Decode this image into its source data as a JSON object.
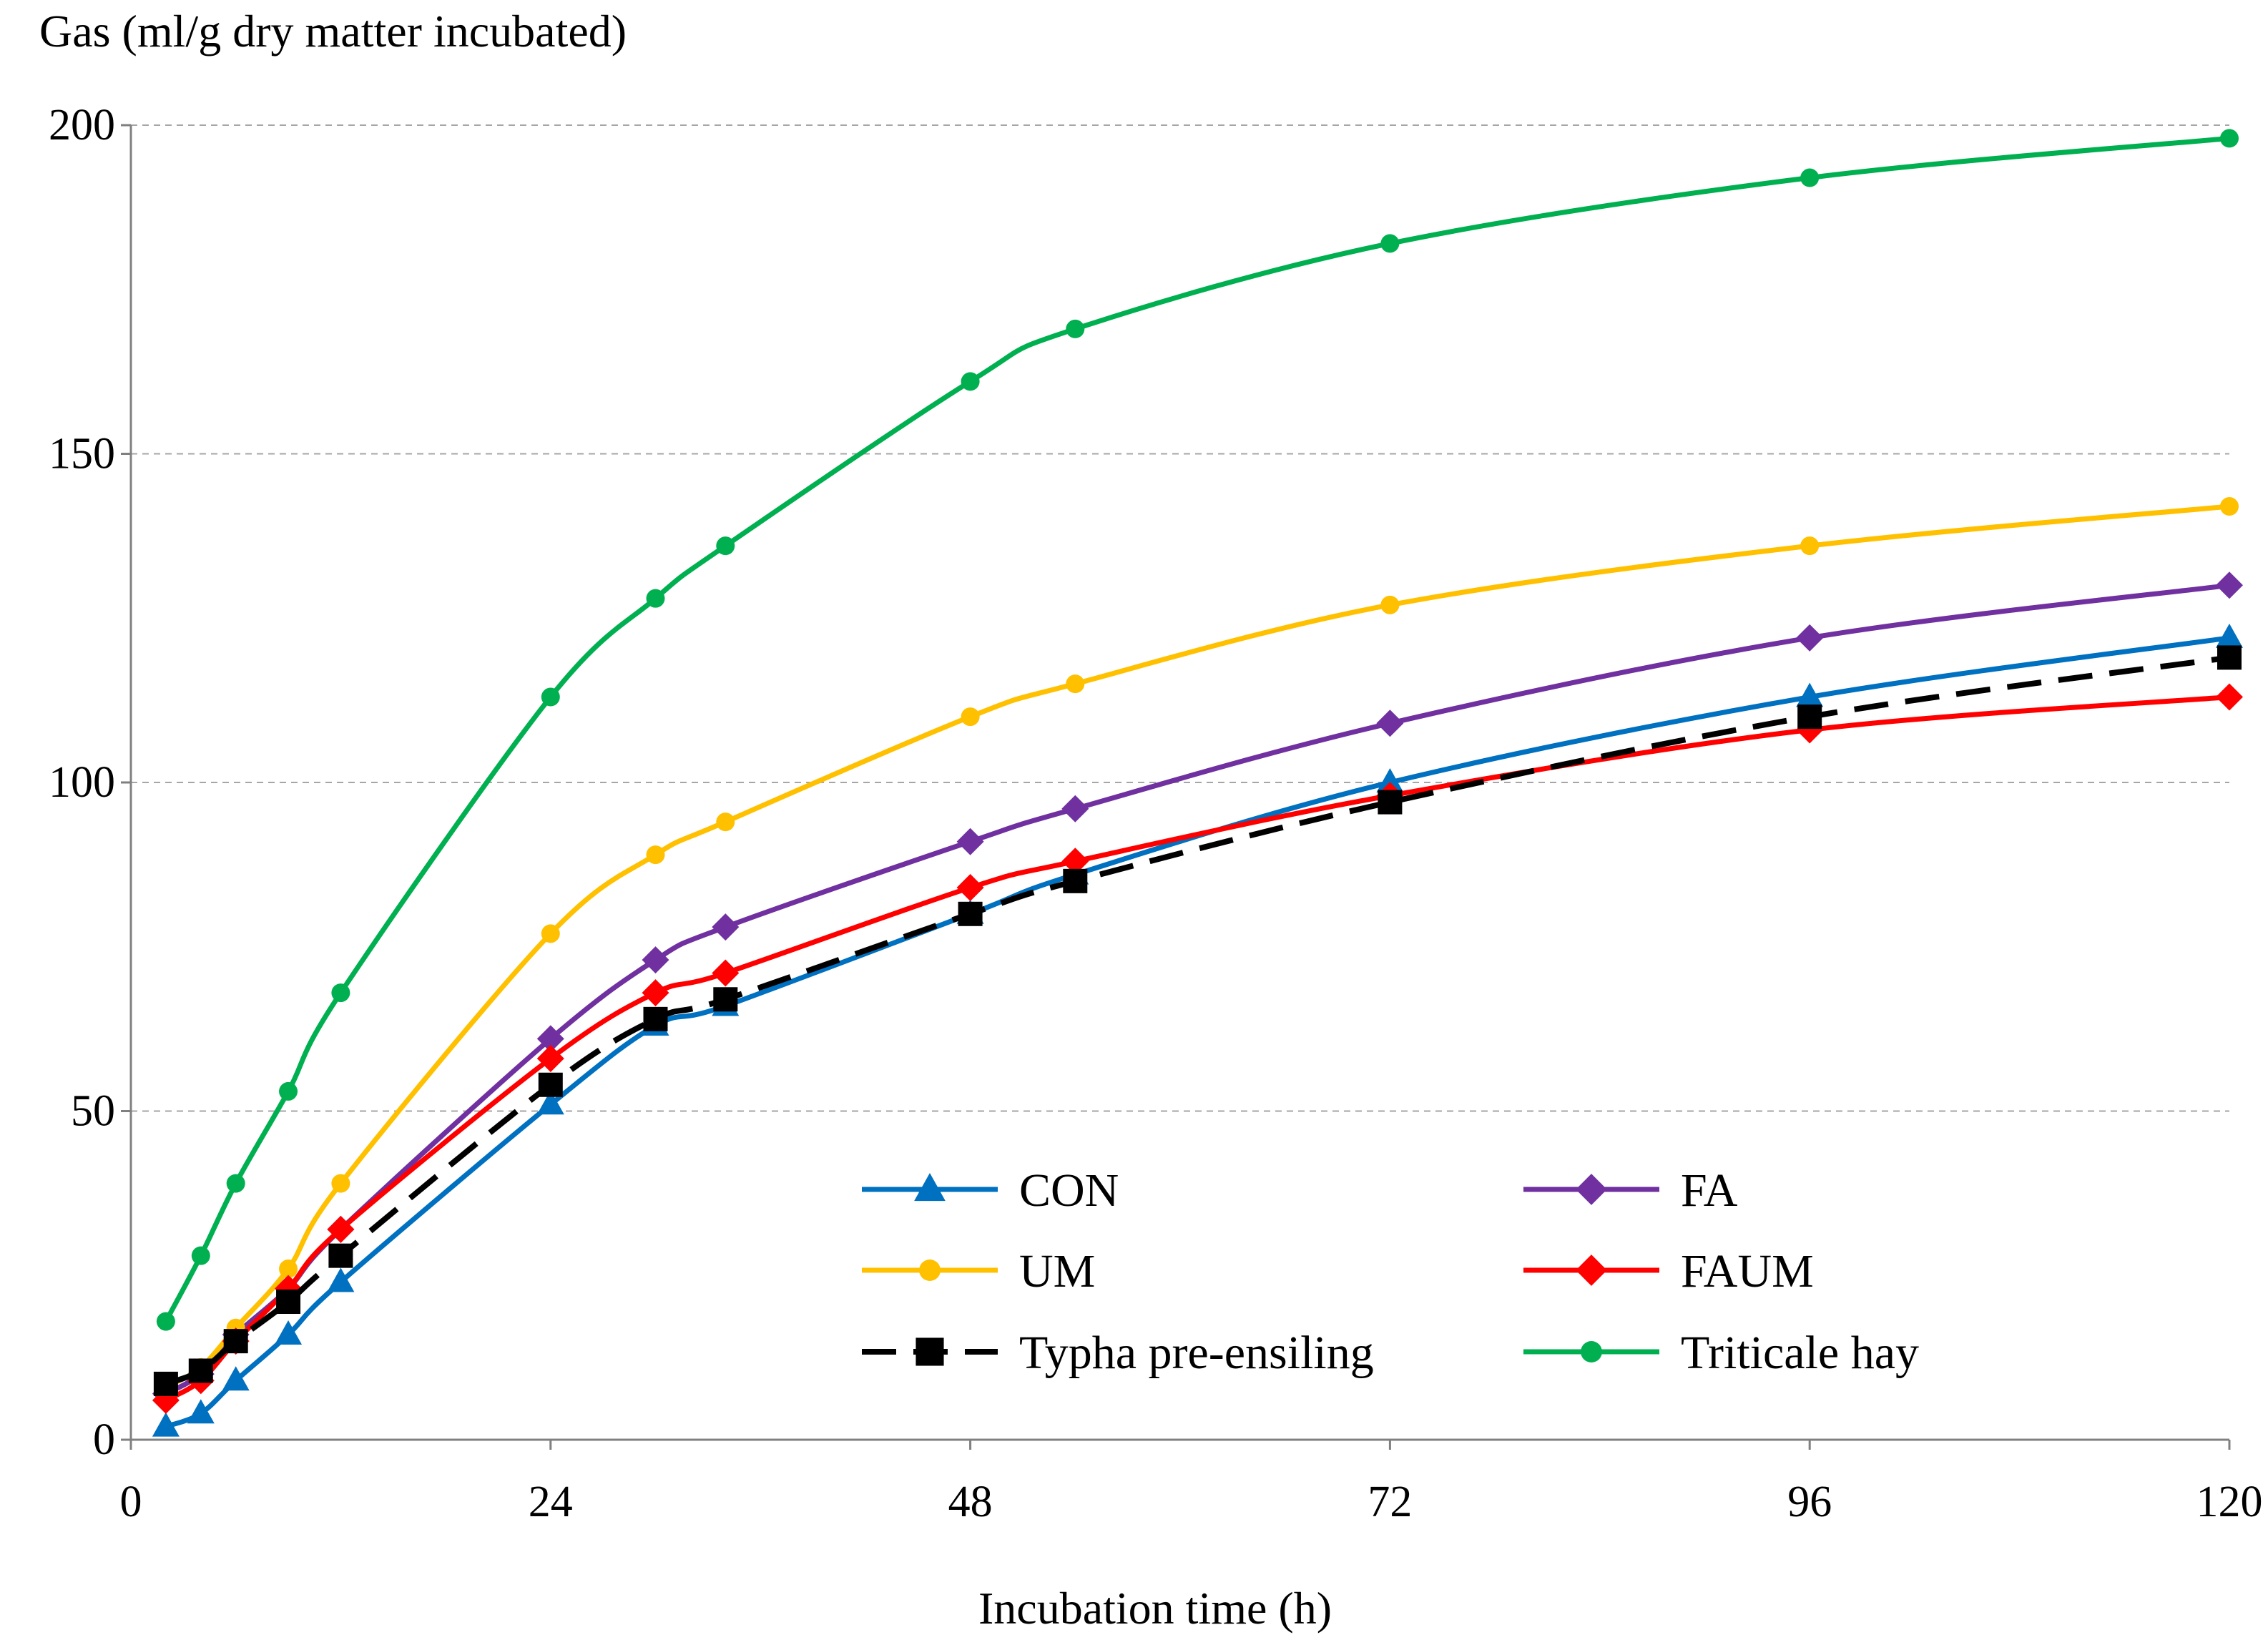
{
  "chart_data": {
    "type": "line",
    "title": "",
    "ylabel": "Gas (ml/g dry matter incubated)",
    "xlabel": "Incubation time (h)",
    "xlim": [
      0,
      120
    ],
    "ylim": [
      0,
      200
    ],
    "x_ticks": [
      0,
      24,
      48,
      72,
      96,
      120
    ],
    "y_ticks": [
      0,
      50,
      100,
      150,
      200
    ],
    "grid": "horizontal dashed",
    "legend": "lower-center, two columns",
    "x": [
      2,
      4,
      6,
      9,
      12,
      24,
      30,
      34,
      48,
      54,
      72,
      96,
      120
    ],
    "series": [
      {
        "name": "CON",
        "color": "#0070C0",
        "marker": "triangle",
        "dash": "solid",
        "values": [
          2,
          4,
          9,
          16,
          24,
          51,
          63,
          66,
          80,
          86,
          100,
          113,
          122
        ]
      },
      {
        "name": "FA",
        "color": "#7030A0",
        "marker": "diamond",
        "dash": "solid",
        "values": [
          7,
          10,
          16,
          23,
          32,
          61,
          73,
          78,
          91,
          96,
          109,
          122,
          130
        ]
      },
      {
        "name": "UM",
        "color": "#FFC000",
        "marker": "circle",
        "dash": "solid",
        "values": [
          8,
          11,
          17,
          26,
          39,
          77,
          89,
          94,
          110,
          115,
          127,
          136,
          142
        ]
      },
      {
        "name": "FAUM",
        "color": "#FF0000",
        "marker": "diamond",
        "dash": "solid",
        "values": [
          6,
          9,
          15,
          23,
          32,
          58,
          68,
          71,
          84,
          88,
          98,
          108,
          113
        ]
      },
      {
        "name": "Typha pre-ensiling",
        "color": "#000000",
        "marker": "square",
        "dash": "dashed",
        "values": [
          8.5,
          10.5,
          15,
          21,
          28,
          54,
          64,
          67,
          80,
          85,
          97,
          110,
          119
        ]
      },
      {
        "name": "Triticale hay",
        "color": "#00B050",
        "marker": "circle",
        "dash": "solid",
        "values": [
          18,
          28,
          39,
          53,
          68,
          113,
          128,
          136,
          161,
          169,
          182,
          192,
          198
        ]
      }
    ]
  }
}
